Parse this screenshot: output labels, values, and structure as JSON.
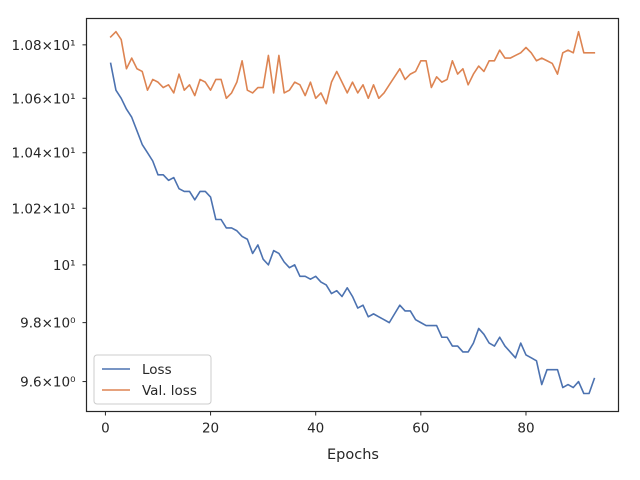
{
  "chart_data": {
    "type": "line",
    "title": "",
    "xlabel": "Epochs",
    "ylabel": "",
    "xlim": [
      -3.6,
      97.6
    ],
    "ylim": [
      9.5,
      10.9
    ],
    "yscale": "log",
    "x_ticks": [
      {
        "value": 0,
        "label": "0"
      },
      {
        "value": 20,
        "label": "20"
      },
      {
        "value": 40,
        "label": "40"
      },
      {
        "value": 60,
        "label": "60"
      },
      {
        "value": 80,
        "label": "80"
      }
    ],
    "y_ticks": [
      {
        "value": 9.6,
        "label": "9.6×10⁰"
      },
      {
        "value": 9.8,
        "label": "9.8×10⁰"
      },
      {
        "value": 10.0,
        "label": "10¹"
      },
      {
        "value": 10.2,
        "label": "1.02×10¹"
      },
      {
        "value": 10.4,
        "label": "1.04×10¹"
      },
      {
        "value": 10.6,
        "label": "1.06×10¹"
      },
      {
        "value": 10.8,
        "label": "1.08×10¹"
      }
    ],
    "grid": false,
    "legend_position": "lower-left",
    "series": [
      {
        "name": "Loss",
        "color": "#4c72b0",
        "x": [
          1,
          2,
          3,
          4,
          5,
          6,
          7,
          8,
          9,
          10,
          11,
          12,
          13,
          14,
          15,
          16,
          17,
          18,
          19,
          20,
          21,
          22,
          23,
          24,
          25,
          26,
          27,
          28,
          29,
          30,
          31,
          32,
          33,
          34,
          35,
          36,
          37,
          38,
          39,
          40,
          41,
          42,
          43,
          44,
          45,
          46,
          47,
          48,
          49,
          50,
          51,
          52,
          53,
          54,
          55,
          56,
          57,
          58,
          59,
          60,
          61,
          62,
          63,
          64,
          65,
          66,
          67,
          68,
          69,
          70,
          71,
          72,
          73,
          74,
          75,
          76,
          77,
          78,
          79,
          80,
          81,
          82,
          83,
          84,
          85,
          86,
          87,
          88,
          89,
          90,
          91,
          92,
          93
        ],
        "values": [
          10.73,
          10.63,
          10.6,
          10.56,
          10.53,
          10.48,
          10.43,
          10.4,
          10.37,
          10.32,
          10.32,
          10.3,
          10.31,
          10.27,
          10.26,
          10.26,
          10.23,
          10.26,
          10.26,
          10.24,
          10.16,
          10.16,
          10.13,
          10.13,
          10.12,
          10.1,
          10.09,
          10.04,
          10.07,
          10.02,
          10.0,
          10.05,
          10.04,
          10.01,
          9.99,
          10.0,
          9.96,
          9.96,
          9.95,
          9.96,
          9.94,
          9.93,
          9.9,
          9.91,
          9.89,
          9.92,
          9.89,
          9.85,
          9.86,
          9.82,
          9.83,
          9.82,
          9.81,
          9.8,
          9.83,
          9.86,
          9.84,
          9.84,
          9.81,
          9.8,
          9.79,
          9.79,
          9.79,
          9.75,
          9.75,
          9.72,
          9.72,
          9.7,
          9.7,
          9.73,
          9.78,
          9.76,
          9.73,
          9.72,
          9.75,
          9.72,
          9.7,
          9.68,
          9.73,
          9.69,
          9.68,
          9.67,
          9.59,
          9.64,
          9.64,
          9.64,
          9.58,
          9.59,
          9.58,
          9.6,
          9.56,
          9.56,
          9.61
        ]
      },
      {
        "name": "Val. loss",
        "color": "#dd8452",
        "x": [
          1,
          2,
          3,
          4,
          5,
          6,
          7,
          8,
          9,
          10,
          11,
          12,
          13,
          14,
          15,
          16,
          17,
          18,
          19,
          20,
          21,
          22,
          23,
          24,
          25,
          26,
          27,
          28,
          29,
          30,
          31,
          32,
          33,
          34,
          35,
          36,
          37,
          38,
          39,
          40,
          41,
          42,
          43,
          44,
          45,
          46,
          47,
          48,
          49,
          50,
          51,
          52,
          53,
          54,
          55,
          56,
          57,
          58,
          59,
          60,
          61,
          62,
          63,
          64,
          65,
          66,
          67,
          68,
          69,
          70,
          71,
          72,
          73,
          74,
          75,
          76,
          77,
          78,
          79,
          80,
          81,
          82,
          83,
          84,
          85,
          86,
          87,
          88,
          89,
          90,
          91,
          92,
          93
        ],
        "values": [
          10.83,
          10.85,
          10.82,
          10.71,
          10.75,
          10.71,
          10.7,
          10.63,
          10.67,
          10.66,
          10.64,
          10.65,
          10.62,
          10.69,
          10.63,
          10.65,
          10.61,
          10.67,
          10.66,
          10.63,
          10.67,
          10.67,
          10.6,
          10.62,
          10.66,
          10.74,
          10.63,
          10.62,
          10.64,
          10.64,
          10.76,
          10.62,
          10.76,
          10.62,
          10.63,
          10.66,
          10.65,
          10.61,
          10.66,
          10.6,
          10.62,
          10.58,
          10.66,
          10.7,
          10.66,
          10.62,
          10.66,
          10.62,
          10.65,
          10.6,
          10.65,
          10.6,
          10.62,
          10.65,
          10.68,
          10.71,
          10.67,
          10.69,
          10.7,
          10.74,
          10.74,
          10.64,
          10.68,
          10.66,
          10.67,
          10.74,
          10.69,
          10.71,
          10.65,
          10.69,
          10.72,
          10.7,
          10.74,
          10.74,
          10.78,
          10.75,
          10.75,
          10.76,
          10.77,
          10.79,
          10.77,
          10.74,
          10.75,
          10.74,
          10.73,
          10.69,
          10.77,
          10.78,
          10.77,
          10.85,
          10.77,
          10.77,
          10.77
        ]
      }
    ]
  }
}
